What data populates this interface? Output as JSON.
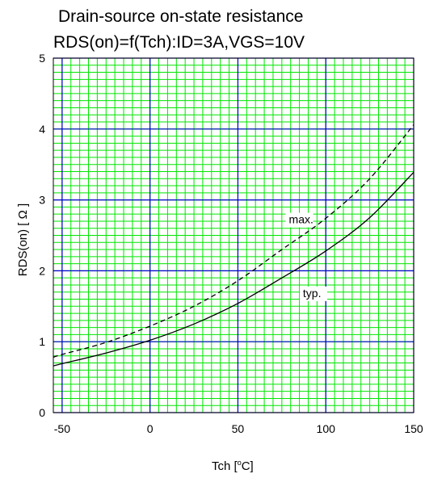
{
  "chart_data": {
    "type": "line",
    "title": "Drain-source on-state resistance",
    "subtitle": "RDS(on)=f(Tch):ID=3A,VGS=10V",
    "xlabel": "Tch [°C]",
    "xlabel_main": "Tch [",
    "xlabel_sup": "o",
    "xlabel_end": "C]",
    "ylabel": "RDS(on) [ Ω ]",
    "xlim": [
      -55,
      150
    ],
    "ylim": [
      0,
      5
    ],
    "x_ticks": [
      -50,
      0,
      50,
      100,
      150
    ],
    "y_ticks": [
      0,
      1,
      2,
      3,
      4,
      5
    ],
    "grid": true,
    "colors": {
      "minor_grid": "#00e600",
      "major_grid": "#0000cc",
      "curve": "#000000"
    },
    "series": [
      {
        "name": "max.",
        "style": "dashed",
        "x": [
          -55,
          -50,
          -25,
          0,
          25,
          50,
          75,
          100,
          125,
          150
        ],
        "y": [
          0.78,
          0.82,
          0.99,
          1.22,
          1.5,
          1.86,
          2.3,
          2.74,
          3.3,
          4.06
        ]
      },
      {
        "name": "typ.",
        "style": "solid",
        "x": [
          -55,
          -50,
          -25,
          0,
          25,
          50,
          75,
          100,
          125,
          150
        ],
        "y": [
          0.66,
          0.69,
          0.84,
          1.02,
          1.25,
          1.54,
          1.9,
          2.28,
          2.75,
          3.39
        ]
      }
    ]
  }
}
